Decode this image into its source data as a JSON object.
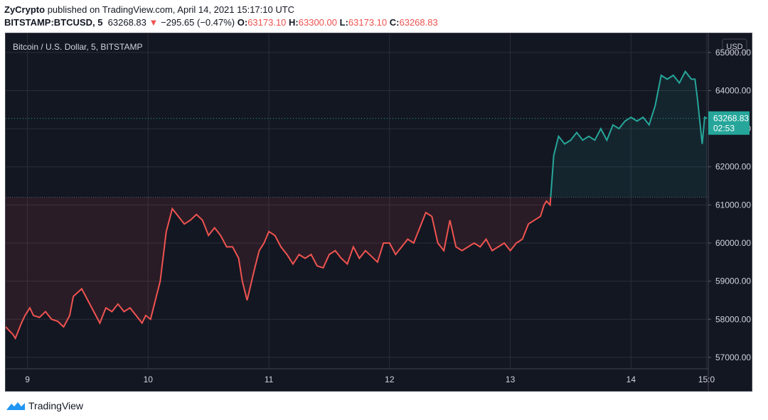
{
  "header": {
    "author": "ZyCrypto",
    "published_text": "published on TradingView.com, April 14, 2021 15:17:10 UTC",
    "symbol": "BITSTAMP:BTCUSD, 5",
    "last": "63268.83",
    "change": "−295.65 (−0.47%)",
    "o_label": "O:",
    "o_value": "63173.10",
    "h_label": "H:",
    "h_value": "63300.00",
    "l_label": "L:",
    "l_value": "63173.10",
    "c_label": "C:",
    "c_value": "63268.83"
  },
  "footer": {
    "brand": "TradingView",
    "logo_icon": "tradingview-logo-icon"
  },
  "colors": {
    "up": "#26a69a",
    "down": "#ef5350",
    "background": "#131722",
    "grid": "#2a2e39"
  },
  "chart_data": {
    "type": "line",
    "title": "Bitcoin / U.S. Dollar, 5, BITSTAMP",
    "currency": "USD",
    "x_ticks": [
      "9",
      "10",
      "11",
      "12",
      "13",
      "14",
      "15:0"
    ],
    "x_tick_days": [
      9,
      10,
      11,
      12,
      13,
      14,
      14.625
    ],
    "y_ticks": [
      57000,
      58000,
      59000,
      60000,
      61000,
      62000,
      63000,
      64000,
      65000
    ],
    "y_tick_labels": [
      "57000.00",
      "58000.00",
      "59000.00",
      "60000.00",
      "61000.00",
      "62000.00",
      "63000.00",
      "64000.00",
      "65000.00"
    ],
    "ylim": [
      56700,
      65500
    ],
    "xlim_days": [
      8.82,
      14.64
    ],
    "baseline": 61200,
    "last_price_label": "63268.83",
    "countdown_label": "02:53",
    "grid": true,
    "series": [
      {
        "x_days": [
          8.82,
          8.88,
          8.9,
          8.95,
          8.98,
          9.02,
          9.05,
          9.1,
          9.15,
          9.2,
          9.25,
          9.3,
          9.35,
          9.38,
          9.45,
          9.5,
          9.55,
          9.6,
          9.65,
          9.7,
          9.75,
          9.8,
          9.85,
          9.9,
          9.95,
          9.98,
          10.02,
          10.06,
          10.1,
          10.15,
          10.2,
          10.25,
          10.3,
          10.35,
          10.4,
          10.45,
          10.5,
          10.55,
          10.6,
          10.65,
          10.7,
          10.75,
          10.78,
          10.82,
          10.85,
          10.88,
          10.92,
          10.96,
          11.0,
          11.05,
          11.1,
          11.15,
          11.2,
          11.25,
          11.3,
          11.35,
          11.4,
          11.45,
          11.5,
          11.55,
          11.6,
          11.65,
          11.7,
          11.75,
          11.8,
          11.85,
          11.9,
          11.95,
          12.0,
          12.05,
          12.1,
          12.15,
          12.2,
          12.25,
          12.3,
          12.35,
          12.4,
          12.45,
          12.5,
          12.55,
          12.6,
          12.65,
          12.7,
          12.75,
          12.8,
          12.85,
          12.9,
          12.95,
          13.0,
          13.05,
          13.1,
          13.15,
          13.2,
          13.25,
          13.28,
          13.3,
          13.33,
          13.36,
          13.4,
          13.45,
          13.5,
          13.55,
          13.6,
          13.65,
          13.7,
          13.75,
          13.8,
          13.85,
          13.9,
          13.95,
          14.0,
          14.05,
          14.1,
          14.15,
          14.2,
          14.25,
          14.3,
          14.35,
          14.4,
          14.45,
          14.5,
          14.53,
          14.55,
          14.57,
          14.59,
          14.61,
          14.63
        ],
        "values": [
          57800,
          57600,
          57500,
          57900,
          58100,
          58300,
          58100,
          58050,
          58200,
          58000,
          57950,
          57800,
          58100,
          58600,
          58800,
          58500,
          58200,
          57900,
          58300,
          58200,
          58400,
          58200,
          58300,
          58100,
          57900,
          58100,
          58000,
          58500,
          59000,
          60300,
          60900,
          60700,
          60500,
          60600,
          60750,
          60600,
          60200,
          60400,
          60200,
          59900,
          59900,
          59600,
          59000,
          58500,
          58900,
          59300,
          59800,
          60000,
          60300,
          60200,
          59900,
          59700,
          59450,
          59700,
          59600,
          59700,
          59400,
          59350,
          59700,
          59800,
          59600,
          59450,
          59900,
          59600,
          59800,
          59650,
          59500,
          60000,
          60000,
          59700,
          59900,
          60100,
          60000,
          60400,
          60800,
          60700,
          60000,
          59800,
          60600,
          59900,
          59800,
          59900,
          60000,
          59900,
          60100,
          59800,
          59900,
          60000,
          59800,
          60000,
          60100,
          60500,
          60600,
          60700,
          61000,
          61100,
          61000,
          62300,
          62800,
          62600,
          62700,
          62900,
          62700,
          62800,
          62700,
          63000,
          62700,
          63100,
          63000,
          63200,
          63300,
          63200,
          63300,
          63100,
          63600,
          64400,
          64300,
          64400,
          64200,
          64500,
          64300,
          64300,
          63800,
          63200,
          62600,
          63300,
          63269
        ]
      }
    ]
  }
}
